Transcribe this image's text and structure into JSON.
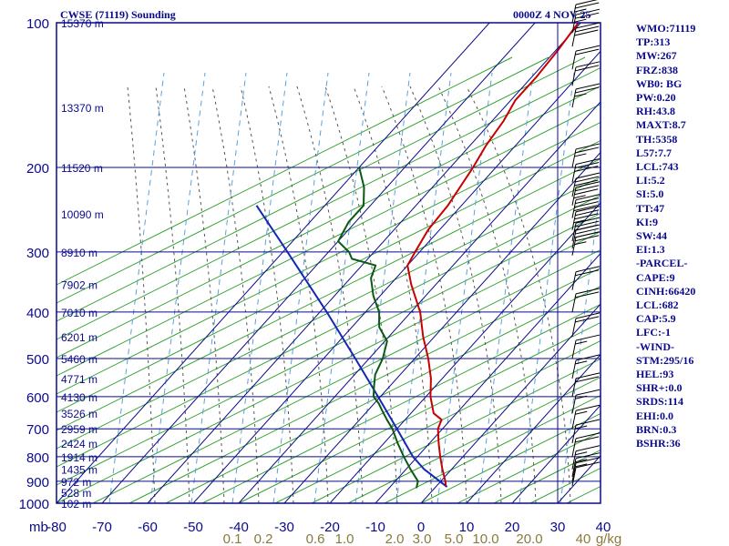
{
  "header": {
    "title": "CWSE (71119) Sounding",
    "time": "0000Z  4 NOV 25"
  },
  "stats": [
    "WMO:71119",
    "TP:313",
    "MW:267",
    "FRZ:838",
    "WB0: BG",
    "PW:0.20",
    "RH:43.8",
    "MAXT:8.7",
    "TH:5358",
    "L57:7.7",
    "LCL:743",
    "LI:5.2",
    "SI:5.0",
    "TT:47",
    "KI:9",
    "SW:44",
    "EI:1.3",
    "-PARCEL-",
    "CAPE:9",
    "CINH:66420",
    "LCL:682",
    "CAP:5.9",
    "LFC:-1",
    "-WIND-",
    "STM:295/16",
    "HEL:93",
    "SHR+:0.0",
    "SRDS:114",
    "EHI:0.0",
    "BRN:0.3",
    "BSHR:36"
  ],
  "colors": {
    "frame": "#0a0a8c",
    "isotherm": "#0a0a8c",
    "dry_adiabat": "#2ca02c",
    "moist_adiabat": "#555555",
    "mixing_ratio": "#5aa0dc",
    "temperature": "#c80000",
    "dewpoint": "#0a5a14",
    "parcel": "#1428b4",
    "mixing_label": "#8a7a3a",
    "wind": "#000000"
  },
  "chart_data": {
    "type": "skew-t",
    "pressure_unit": "mb",
    "pressure_levels": [
      100,
      200,
      300,
      400,
      500,
      600,
      700,
      800,
      900,
      1000
    ],
    "pressure_labels": [
      "100",
      "200",
      "300",
      "400",
      "500",
      "600",
      "700",
      "800",
      "900",
      "1000"
    ],
    "x_unit_label": "mb",
    "temperature_ticks": [
      -80,
      -70,
      -60,
      -50,
      -40,
      -30,
      -20,
      -10,
      0,
      10,
      20,
      30,
      40
    ],
    "temperature_tick_labels": [
      "-80",
      "-70",
      "-60",
      "-50",
      "-40",
      "-30",
      "-20",
      "-10",
      "0",
      "10",
      "20",
      "30",
      "40"
    ],
    "mixing_ratio_labels": [
      "0.1",
      "0.2",
      "0.6",
      "1.0",
      "2.0",
      "3.0",
      "5.0",
      "10.0",
      "20.0",
      "40",
      "g/kg"
    ],
    "height_labels": [
      {
        "p": 100,
        "label": "15370 m"
      },
      {
        "p": 150,
        "label": "13370 m"
      },
      {
        "p": 200,
        "label": "11520 m"
      },
      {
        "p": 250,
        "label": "10090 m"
      },
      {
        "p": 300,
        "label": "8910 m"
      },
      {
        "p": 350,
        "label": "7902 m"
      },
      {
        "p": 400,
        "label": "7010 m"
      },
      {
        "p": 450,
        "label": "6201 m"
      },
      {
        "p": 500,
        "label": "5460 m"
      },
      {
        "p": 550,
        "label": "4771 m"
      },
      {
        "p": 600,
        "label": "4130 m"
      },
      {
        "p": 650,
        "label": "3526 m"
      },
      {
        "p": 700,
        "label": "2959 m"
      },
      {
        "p": 750,
        "label": "2424 m"
      },
      {
        "p": 800,
        "label": "1914 m"
      },
      {
        "p": 850,
        "label": "1435 m"
      },
      {
        "p": 900,
        "label": "972 m"
      },
      {
        "p": 950,
        "label": "528 m"
      },
      {
        "p": 1000,
        "label": "102 m"
      }
    ],
    "temperature_profile": [
      {
        "p": 920,
        "t": 2.0
      },
      {
        "p": 900,
        "t": 1.0
      },
      {
        "p": 850,
        "t": -2.0
      },
      {
        "p": 800,
        "t": -5.0
      },
      {
        "p": 750,
        "t": -8.0
      },
      {
        "p": 700,
        "t": -11.0
      },
      {
        "p": 670,
        "t": -12.0
      },
      {
        "p": 650,
        "t": -15.0
      },
      {
        "p": 600,
        "t": -19.0
      },
      {
        "p": 550,
        "t": -22.5
      },
      {
        "p": 500,
        "t": -27.0
      },
      {
        "p": 450,
        "t": -32.5
      },
      {
        "p": 400,
        "t": -38.0
      },
      {
        "p": 350,
        "t": -45.5
      },
      {
        "p": 320,
        "t": -50.0
      },
      {
        "p": 300,
        "t": -51.0
      },
      {
        "p": 270,
        "t": -52.5
      },
      {
        "p": 240,
        "t": -53.0
      },
      {
        "p": 200,
        "t": -55.0
      },
      {
        "p": 180,
        "t": -56.5
      },
      {
        "p": 160,
        "t": -57.5
      },
      {
        "p": 145,
        "t": -59.0
      },
      {
        "p": 130,
        "t": -59.0
      },
      {
        "p": 115,
        "t": -59.5
      },
      {
        "p": 100,
        "t": -60.5
      }
    ],
    "dewpoint_profile": [
      {
        "p": 930,
        "t": -4.0
      },
      {
        "p": 900,
        "t": -5.0
      },
      {
        "p": 850,
        "t": -9.0
      },
      {
        "p": 800,
        "t": -13.0
      },
      {
        "p": 750,
        "t": -17.0
      },
      {
        "p": 700,
        "t": -21.0
      },
      {
        "p": 670,
        "t": -24.0
      },
      {
        "p": 640,
        "t": -27.0
      },
      {
        "p": 620,
        "t": -29.0
      },
      {
        "p": 600,
        "t": -31.5
      },
      {
        "p": 570,
        "t": -33.5
      },
      {
        "p": 540,
        "t": -35.5
      },
      {
        "p": 500,
        "t": -37.0
      },
      {
        "p": 460,
        "t": -39.5
      },
      {
        "p": 430,
        "t": -44.0
      },
      {
        "p": 400,
        "t": -47.0
      },
      {
        "p": 370,
        "t": -51.5
      },
      {
        "p": 340,
        "t": -55.5
      },
      {
        "p": 320,
        "t": -57.0
      },
      {
        "p": 310,
        "t": -63.5
      },
      {
        "p": 300,
        "t": -65.5
      },
      {
        "p": 285,
        "t": -70.0
      },
      {
        "p": 260,
        "t": -71.5
      },
      {
        "p": 240,
        "t": -71.5
      },
      {
        "p": 220,
        "t": -75.0
      },
      {
        "p": 200,
        "t": -80.0
      }
    ],
    "parcel_profile": [
      {
        "p": 925,
        "t": 2.5
      },
      {
        "p": 850,
        "t": -6.0
      },
      {
        "p": 800,
        "t": -11.0
      },
      {
        "p": 700,
        "t": -20.0
      },
      {
        "p": 600,
        "t": -30.5
      },
      {
        "p": 500,
        "t": -43.0
      },
      {
        "p": 400,
        "t": -58.5
      },
      {
        "p": 300,
        "t": -79.0
      },
      {
        "p": 240,
        "t": -95.0
      }
    ],
    "wind_barbs": [
      {
        "p": 100,
        "speed": 25
      },
      {
        "p": 105,
        "speed": 25
      },
      {
        "p": 112,
        "speed": 30
      },
      {
        "p": 125,
        "speed": 20
      },
      {
        "p": 135,
        "speed": 20
      },
      {
        "p": 150,
        "speed": 25
      },
      {
        "p": 200,
        "speed": 25
      },
      {
        "p": 215,
        "speed": 30
      },
      {
        "p": 230,
        "speed": 30
      },
      {
        "p": 240,
        "speed": 35
      },
      {
        "p": 255,
        "speed": 40
      },
      {
        "p": 270,
        "speed": 35
      },
      {
        "p": 285,
        "speed": 30
      },
      {
        "p": 295,
        "speed": 30
      },
      {
        "p": 305,
        "speed": 25
      },
      {
        "p": 360,
        "speed": 20
      },
      {
        "p": 400,
        "speed": 20
      },
      {
        "p": 450,
        "speed": 20
      },
      {
        "p": 500,
        "speed": 15
      },
      {
        "p": 550,
        "speed": 15
      },
      {
        "p": 600,
        "speed": 20
      },
      {
        "p": 650,
        "speed": 15
      },
      {
        "p": 700,
        "speed": 15
      },
      {
        "p": 750,
        "speed": 15
      },
      {
        "p": 800,
        "speed": 20
      },
      {
        "p": 850,
        "speed": 15
      },
      {
        "p": 880,
        "speed": 15
      },
      {
        "p": 900,
        "speed": 15
      },
      {
        "p": 920,
        "speed": 10
      }
    ],
    "xlim": [
      -80,
      40
    ],
    "ylim": [
      1000,
      100
    ],
    "log_pressure": true,
    "grid": true
  }
}
